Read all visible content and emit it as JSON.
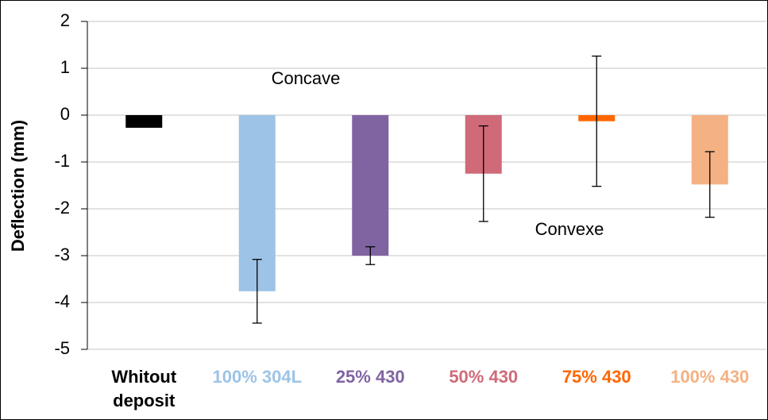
{
  "chart_data": {
    "type": "bar",
    "ylabel": "Deflection (mm)",
    "categories": [
      "Whitout deposit",
      "100% 304L",
      "25% 430",
      "50% 430",
      "75% 430",
      "100% 430"
    ],
    "values": [
      -0.27,
      -3.76,
      -3.0,
      -1.25,
      -0.13,
      -1.48
    ],
    "errors": [
      null,
      0.68,
      0.19,
      1.02,
      1.39,
      0.7
    ],
    "colors": [
      "#000000",
      "#9dc3e6",
      "#8064a2",
      "#d06a78",
      "#ff6600",
      "#f4b183"
    ],
    "ylim": [
      -5,
      2
    ],
    "yticks": [
      -5,
      -4,
      -3,
      -2,
      -1,
      0,
      1,
      2
    ],
    "grid": true,
    "annotations": [
      "Concave",
      "Convexe"
    ]
  }
}
